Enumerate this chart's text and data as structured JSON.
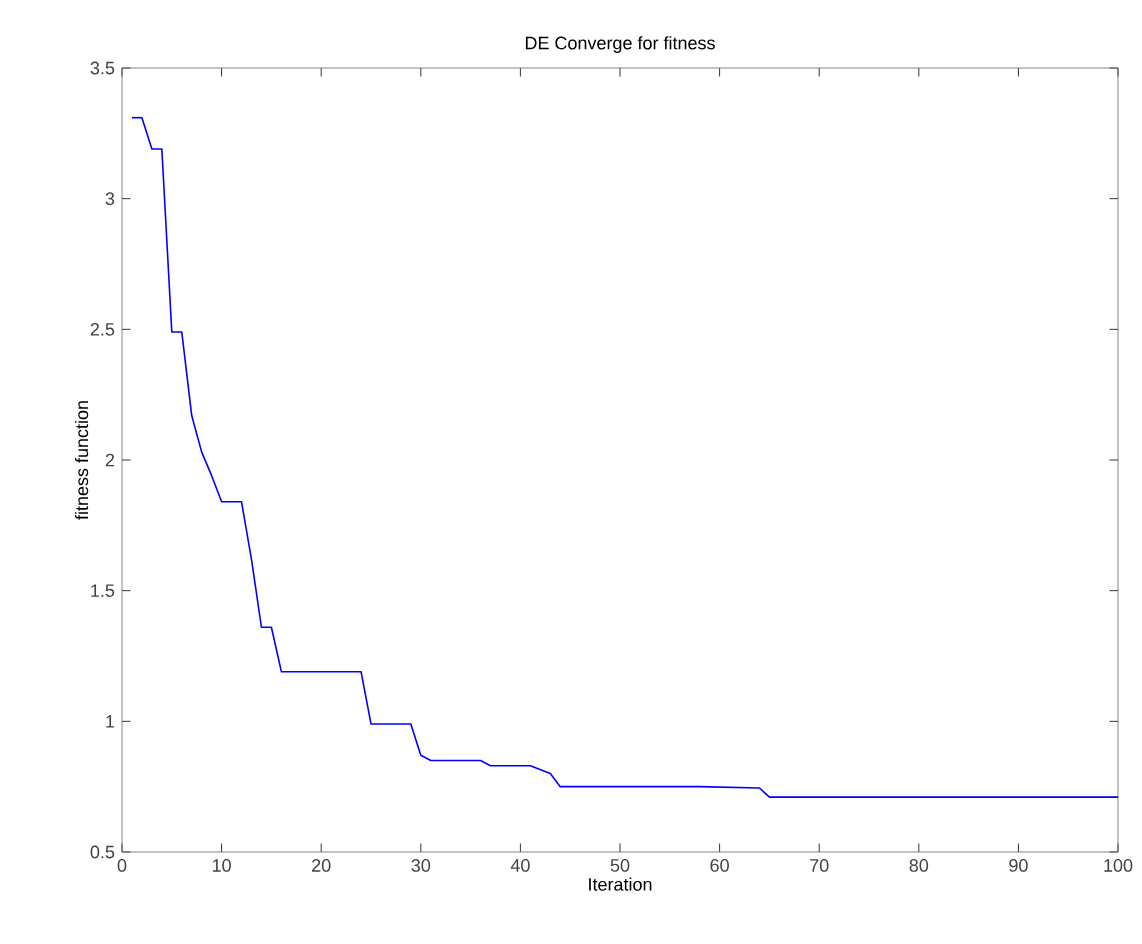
{
  "chart_data": {
    "type": "line",
    "title": "DE Converge for fitness",
    "xlabel": "Iteration",
    "ylabel": "fitness function",
    "xlim": [
      0,
      100
    ],
    "ylim": [
      0.5,
      3.5
    ],
    "xticks": [
      0,
      10,
      20,
      30,
      40,
      50,
      60,
      70,
      80,
      90,
      100
    ],
    "yticks": [
      0.5,
      1,
      1.5,
      2,
      2.5,
      3,
      3.5
    ],
    "grid": false,
    "series": [
      {
        "color": "#0000ff",
        "x": [
          1,
          2,
          3,
          4,
          5,
          6,
          7,
          8,
          9,
          10,
          11,
          12,
          13,
          14,
          15,
          16,
          24,
          25,
          29,
          30,
          31,
          36,
          37,
          41,
          43,
          44,
          58,
          64,
          65,
          100
        ],
        "values": [
          3.31,
          3.31,
          3.19,
          3.19,
          2.49,
          2.49,
          2.17,
          2.03,
          1.94,
          1.84,
          1.84,
          1.84,
          1.62,
          1.36,
          1.36,
          1.19,
          1.19,
          0.99,
          0.99,
          0.87,
          0.85,
          0.85,
          0.83,
          0.83,
          0.8,
          0.75,
          0.75,
          0.745,
          0.71,
          0.71
        ]
      }
    ]
  }
}
